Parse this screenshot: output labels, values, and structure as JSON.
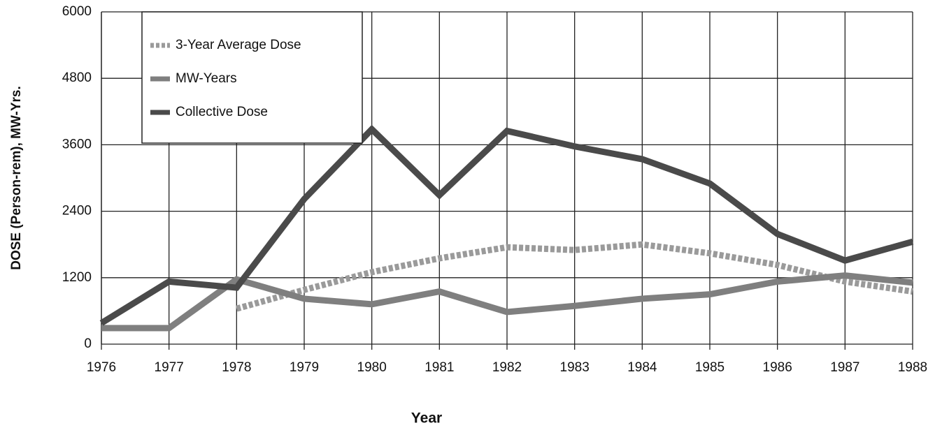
{
  "chart_data": {
    "type": "line",
    "xlabel": "Year",
    "ylabel": "DOSE (Person-rem), MW-Yrs.",
    "categories": [
      "1976",
      "1977",
      "1978",
      "1979",
      "1980",
      "1981",
      "1982",
      "1983",
      "1984",
      "1985",
      "1986",
      "1987",
      "1988"
    ],
    "series": [
      {
        "name": "3-Year Average Dose",
        "color": "#9a9a9a",
        "style": "dashed",
        "values": [
          null,
          null,
          640,
          980,
          1300,
          1550,
          1750,
          1700,
          1800,
          1640,
          1430,
          1130,
          950
        ]
      },
      {
        "name": "MW-Years",
        "color": "#7f7f7f",
        "style": "solid",
        "values": [
          290,
          290,
          1170,
          820,
          720,
          950,
          580,
          690,
          820,
          900,
          1130,
          1240,
          1110
        ]
      },
      {
        "name": "Collective Dose",
        "color": "#4a4a4a",
        "style": "solid",
        "values": [
          380,
          1130,
          1020,
          2620,
          3880,
          2690,
          3850,
          3570,
          3340,
          2900,
          1990,
          1510,
          1850
        ]
      }
    ],
    "ylim": [
      0,
      6000
    ],
    "yticks": [
      0,
      1200,
      2400,
      3600,
      4800,
      6000
    ],
    "grid": true,
    "legend": "upper left"
  }
}
